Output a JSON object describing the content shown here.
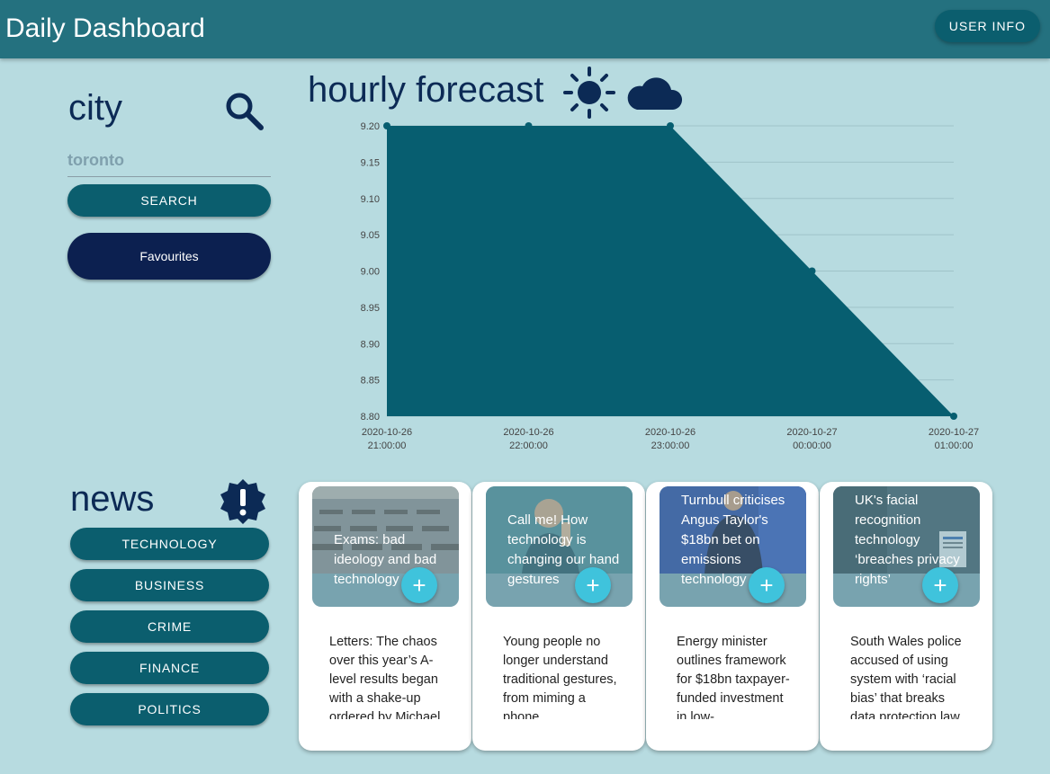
{
  "header": {
    "title": "Daily Dashboard",
    "user_info_label": "USER INFO"
  },
  "city": {
    "title": "city",
    "input_value": "toronto",
    "search_label": "SEARCH",
    "favourites_label": "Favourites"
  },
  "forecast": {
    "title": "hourly forecast"
  },
  "chart_data": {
    "type": "area",
    "x": [
      "2020-10-26 21:00:00",
      "2020-10-26 22:00:00",
      "2020-10-26 23:00:00",
      "2020-10-27 00:00:00",
      "2020-10-27 01:00:00"
    ],
    "x_ticks": [
      [
        "2020-10-26",
        "21:00:00"
      ],
      [
        "2020-10-26",
        "22:00:00"
      ],
      [
        "2020-10-26",
        "23:00:00"
      ],
      [
        "2020-10-27",
        "00:00:00"
      ],
      [
        "2020-10-27",
        "01:00:00"
      ]
    ],
    "values": [
      9.2,
      9.2,
      9.2,
      9.0,
      8.8
    ],
    "ylim": [
      8.8,
      9.2
    ],
    "y_ticks": [
      "9.20",
      "9.15",
      "9.10",
      "9.05",
      "9.00",
      "8.95",
      "8.90",
      "8.85",
      "8.80"
    ],
    "grid": true,
    "color": "#075e70"
  },
  "news": {
    "title": "news",
    "categories": [
      "TECHNOLOGY",
      "BUSINESS",
      "CRIME",
      "FINANCE",
      "POLITICS"
    ],
    "cards": [
      {
        "headline": "Exams: bad ideology and bad technology",
        "description": "Letters: The chaos over this year’s A-level results began with a shake-up ordered by Michael",
        "image": "exam-hall-image"
      },
      {
        "headline": "Call me! How technology is changing our hand gestures",
        "description": "Young people no longer understand traditional gestures, from miming a phone",
        "image": "phone-gesture-image"
      },
      {
        "headline": "Turnbull criticises Angus Taylor's $18bn bet on emissions technology",
        "description": "Energy minister outlines framework for $18bn taxpayer-funded investment in low-",
        "image": "politician-image"
      },
      {
        "headline": "UK's facial recognition technology ‘breaches privacy rights’",
        "description": "South Wales police accused of using system with ‘racial bias’ that breaks data protection law",
        "image": "street-camera-image"
      }
    ],
    "add_symbol": "+"
  },
  "colors": {
    "background": "#b7dbe0",
    "appbar": "#24717f",
    "button": "#0b5e6e",
    "favourites": "#0c2050",
    "heading": "#0c2a55",
    "add_button": "#3fc3dc"
  },
  "icons": [
    "search-icon",
    "sun-icon",
    "cloud-icon",
    "alert-icon",
    "add-icon"
  ]
}
